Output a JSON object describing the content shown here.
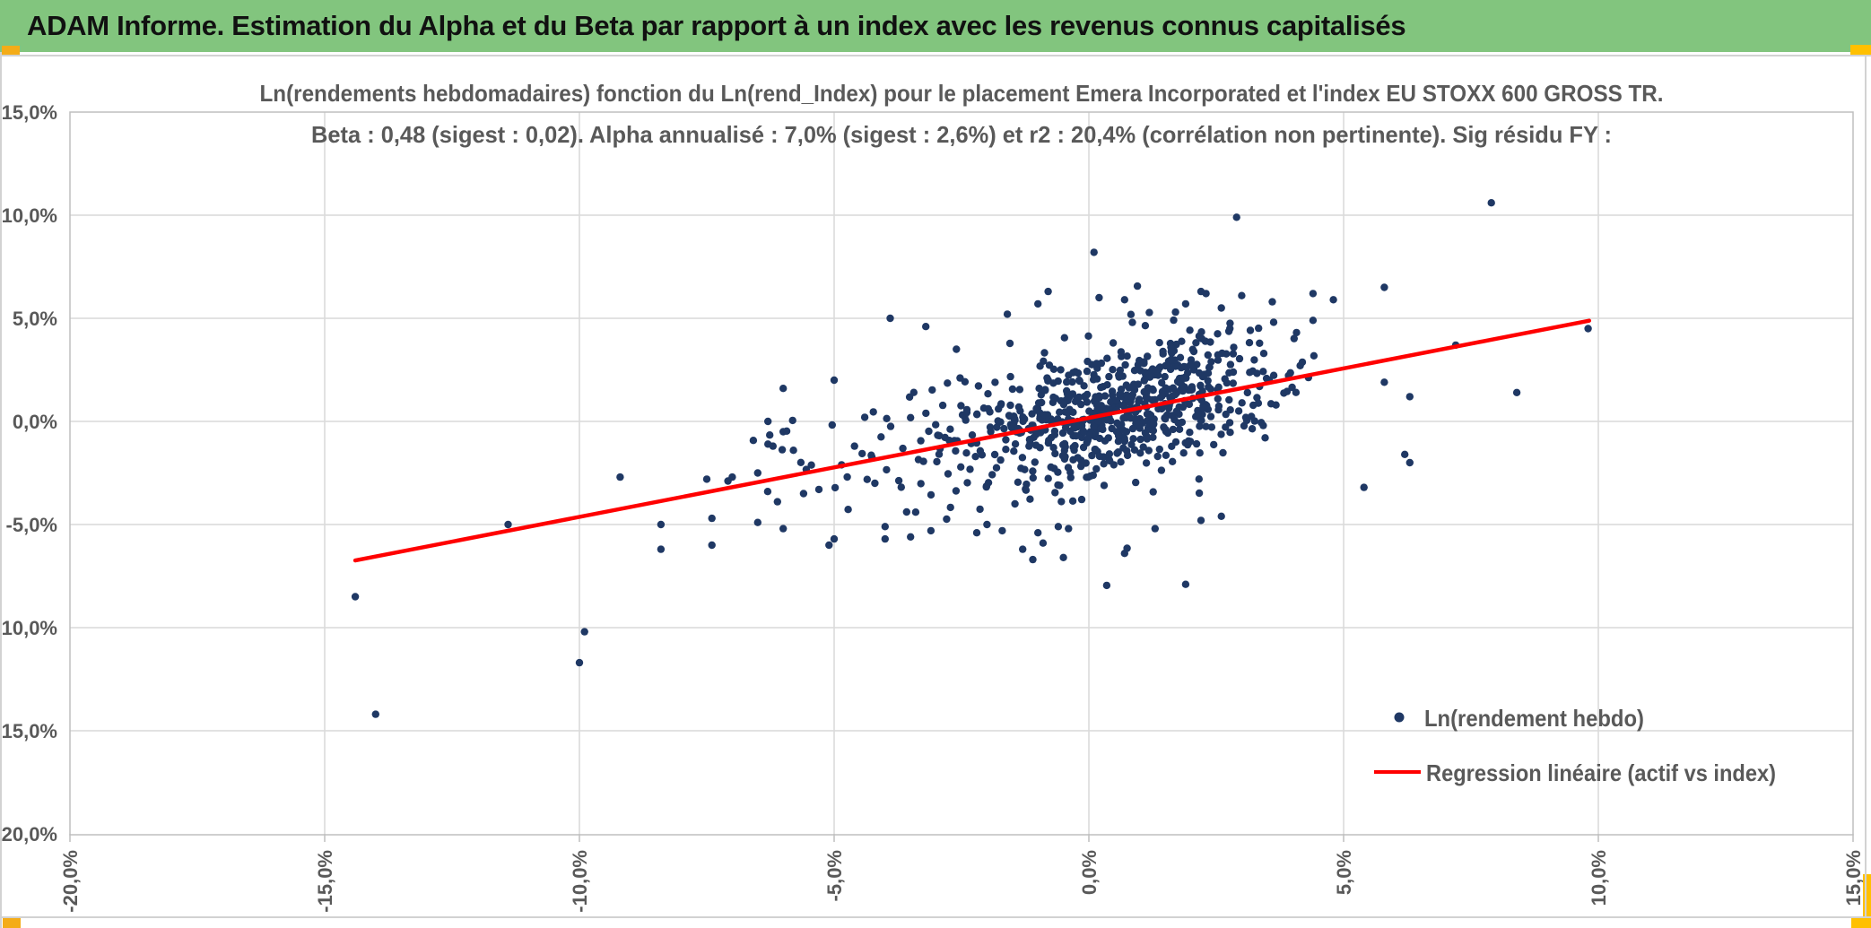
{
  "header": {
    "title": "ADAM Informe. Estimation du Alpha et du Beta par rapport à un index avec les revenus connus capitalisés"
  },
  "colors": {
    "header_bg": "#82C57E",
    "accent_gold": "#FFC000",
    "accent_amber": "#F4AC18",
    "marker": "#1F3864",
    "regression": "#FF0000",
    "grid": "#D9D9D9",
    "plot_border": "#BFBFBF",
    "axis_text": "#595959",
    "title_text": "#595959"
  },
  "chart_data": {
    "type": "scatter",
    "title": "Ln(rendements hebdomadaires) fonction du Ln(rend_Index) pour le placement Emera Incorporated et l'index EU STOXX 600 GROSS TR.",
    "subtitle": "Beta : 0,48 (sigest : 0,02). Alpha annualisé : 7,0% (sigest : 2,6%) et r2 : 20,4% (corrélation non pertinente). Sig résidu FY :",
    "xlabel": "",
    "ylabel": "",
    "grid": true,
    "x_axis": {
      "min": -20,
      "max": 15,
      "tick_step": 5,
      "tick_values": [
        -20,
        -15,
        -10,
        -5,
        0,
        5,
        10,
        15
      ],
      "labels": [
        "-20,0%",
        "-15,0%",
        "-10,0%",
        "-5,0%",
        "0,0%",
        "5,0%",
        "10,0%",
        "15,0%"
      ]
    },
    "y_axis": {
      "min": -20,
      "max": 15,
      "tick_step": 5,
      "tick_values": [
        15,
        10,
        5,
        0,
        -5,
        -10,
        -15,
        -20
      ],
      "labels": [
        "15,0%",
        "10,0%",
        "5,0%",
        "0,0%",
        "-5,0%",
        "-10,0%",
        "-15,0%",
        "-20,0%"
      ]
    },
    "legend": {
      "position": "inside-bottom-right",
      "entries": [
        {
          "label": "Ln(rendement hebdo)",
          "type": "marker",
          "color": "#1F3864"
        },
        {
          "label": "Regression linéaire (actif vs index)",
          "type": "line",
          "color": "#FF0000"
        }
      ]
    },
    "stats": {
      "beta": "0,48",
      "beta_sigest": "0,02",
      "alpha_annualise": "7,0%",
      "alpha_sigest": "2,6%",
      "r2": "20,4%",
      "r2_note": "corrélation non pertinente",
      "residu_label": "Sig résidu FY :"
    },
    "regression_line": {
      "beta": 0.48,
      "intercept_pct": 0.17,
      "x_start": -14.4,
      "x_end": 9.82
    },
    "scatter": {
      "units": "percent_weekly_log_return",
      "explicit_points": [
        [
          -14.4,
          -8.5
        ],
        [
          -14.0,
          -14.2
        ],
        [
          -11.4,
          -5.0
        ],
        [
          -10.0,
          -11.7
        ],
        [
          -9.9,
          -10.2
        ],
        [
          -9.2,
          -2.7
        ],
        [
          -8.4,
          -5.0
        ],
        [
          -8.4,
          -6.2
        ],
        [
          -7.5,
          -2.8
        ],
        [
          -7.4,
          -4.7
        ],
        [
          -7.4,
          -6.0
        ],
        [
          -7.0,
          -2.7
        ],
        [
          -6.5,
          -2.5
        ],
        [
          -6.5,
          -4.9
        ],
        [
          -6.3,
          0.0
        ],
        [
          -6.3,
          -1.1
        ],
        [
          -6.2,
          -1.2
        ],
        [
          -6.0,
          1.6
        ],
        [
          -6.0,
          -0.5
        ],
        [
          -6.0,
          -5.2
        ],
        [
          -5.8,
          -1.4
        ],
        [
          -5.6,
          -3.5
        ],
        [
          -5.3,
          -3.3
        ],
        [
          -5.1,
          -6.0
        ],
        [
          -5.0,
          -5.7
        ],
        [
          -5.0,
          2.0
        ],
        [
          -4.6,
          -1.2
        ],
        [
          -4.4,
          0.2
        ],
        [
          -4.2,
          -3.0
        ],
        [
          -4.0,
          -5.1
        ],
        [
          -4.0,
          -5.7
        ],
        [
          -3.9,
          5.0
        ],
        [
          -3.5,
          -5.6
        ],
        [
          -3.4,
          -4.4
        ],
        [
          -3.2,
          4.6
        ],
        [
          -3.1,
          -5.3
        ],
        [
          -2.6,
          3.5
        ],
        [
          -2.2,
          -5.4
        ],
        [
          -2.0,
          -5.0
        ],
        [
          -1.7,
          -5.3
        ],
        [
          -1.6,
          5.2
        ],
        [
          -1.3,
          -6.2
        ],
        [
          -1.1,
          -6.7
        ],
        [
          -1.0,
          -5.4
        ],
        [
          -1.0,
          5.7
        ],
        [
          -0.9,
          -5.9
        ],
        [
          -0.8,
          6.3
        ],
        [
          -0.6,
          -5.1
        ],
        [
          -0.5,
          -6.6
        ],
        [
          -0.4,
          -5.2
        ],
        [
          0.1,
          8.2
        ],
        [
          0.2,
          6.0
        ],
        [
          0.35,
          -7.95
        ],
        [
          0.7,
          -6.4
        ],
        [
          0.7,
          5.9
        ],
        [
          0.75,
          -6.15
        ],
        [
          1.3,
          -5.2
        ],
        [
          1.7,
          5.3
        ],
        [
          1.9,
          -7.9
        ],
        [
          1.9,
          5.7
        ],
        [
          2.2,
          -4.8
        ],
        [
          2.2,
          6.3
        ],
        [
          2.3,
          6.2
        ],
        [
          2.6,
          -4.6
        ],
        [
          2.6,
          5.5
        ],
        [
          2.9,
          9.9
        ],
        [
          3.0,
          6.1
        ],
        [
          3.6,
          5.8
        ],
        [
          4.4,
          4.9
        ],
        [
          4.4,
          6.2
        ],
        [
          4.8,
          5.9
        ],
        [
          5.4,
          -3.2
        ],
        [
          5.8,
          1.9
        ],
        [
          5.8,
          6.5
        ],
        [
          6.2,
          -1.6
        ],
        [
          6.3,
          -2.0
        ],
        [
          6.3,
          1.2
        ],
        [
          7.2,
          3.7
        ],
        [
          7.9,
          10.6
        ],
        [
          8.4,
          1.4
        ],
        [
          9.8,
          4.5
        ]
      ],
      "cloud": {
        "seed": 20402,
        "count": 700,
        "x_mean": 0.6,
        "x_std": 1.6,
        "beta": 0.48,
        "intercept": 0.25,
        "resid_std": 1.62,
        "x_range": [
          -4.7,
          5.0
        ],
        "y_range": [
          -7.2,
          6.8
        ]
      },
      "left_tail": {
        "seed": 4811,
        "count": 42,
        "x_mean": -3.8,
        "x_std": 1.5,
        "beta": 0.48,
        "intercept": 0.17,
        "resid_std": 1.55,
        "x_range": [
          -7.2,
          -1.8
        ],
        "y_range": [
          -6.5,
          3.5
        ]
      }
    }
  }
}
